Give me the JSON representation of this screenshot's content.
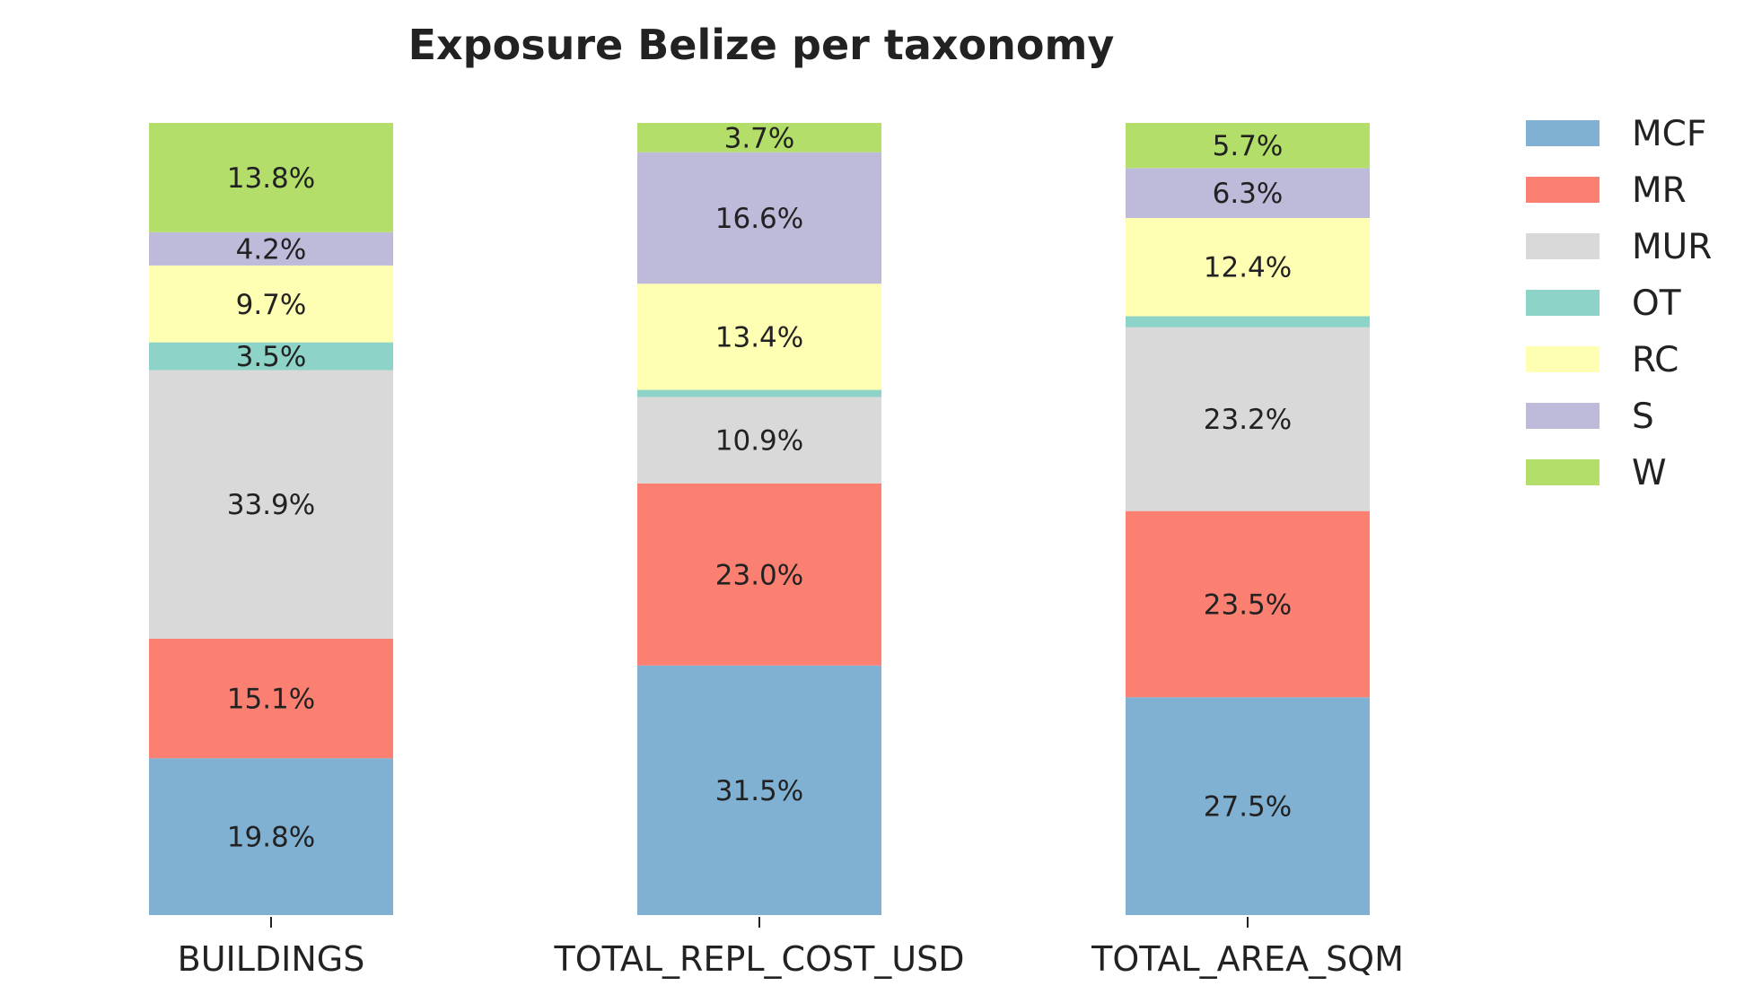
{
  "chart_data": {
    "type": "bar",
    "stacked": true,
    "percent": true,
    "title": "Exposure Belize per taxonomy",
    "xlabel": "",
    "ylabel": "",
    "ylim": [
      0,
      100
    ],
    "grid": false,
    "legend_position": "right",
    "categories": [
      "BUILDINGS",
      "TOTAL_REPL_COST_USD",
      "TOTAL_AREA_SQM"
    ],
    "series": [
      {
        "name": "MCF",
        "color": "#80b1d3",
        "values": [
          19.8,
          31.5,
          27.5
        ],
        "labels": [
          "19.8%",
          "31.5%",
          "27.5%"
        ]
      },
      {
        "name": "MR",
        "color": "#fb8072",
        "values": [
          15.1,
          23.0,
          23.5
        ],
        "labels": [
          "15.1%",
          "23.0%",
          "23.5%"
        ]
      },
      {
        "name": "MUR",
        "color": "#d9d9d9",
        "values": [
          33.9,
          10.9,
          23.2
        ],
        "labels": [
          "33.9%",
          "10.9%",
          "23.2%"
        ]
      },
      {
        "name": "OT",
        "color": "#8dd3c7",
        "values": [
          3.5,
          0.9,
          1.4
        ],
        "labels": [
          "3.5%",
          "",
          ""
        ]
      },
      {
        "name": "RC",
        "color": "#ffffb3",
        "values": [
          9.7,
          13.4,
          12.4
        ],
        "labels": [
          "9.7%",
          "13.4%",
          "12.4%"
        ]
      },
      {
        "name": "S",
        "color": "#bebada",
        "values": [
          4.2,
          16.6,
          6.3
        ],
        "labels": [
          "4.2%",
          "16.6%",
          "6.3%"
        ]
      },
      {
        "name": "W",
        "color": "#b3de69",
        "values": [
          13.8,
          3.7,
          5.7
        ],
        "labels": [
          "13.8%",
          "3.7%",
          "5.7%"
        ]
      }
    ]
  }
}
